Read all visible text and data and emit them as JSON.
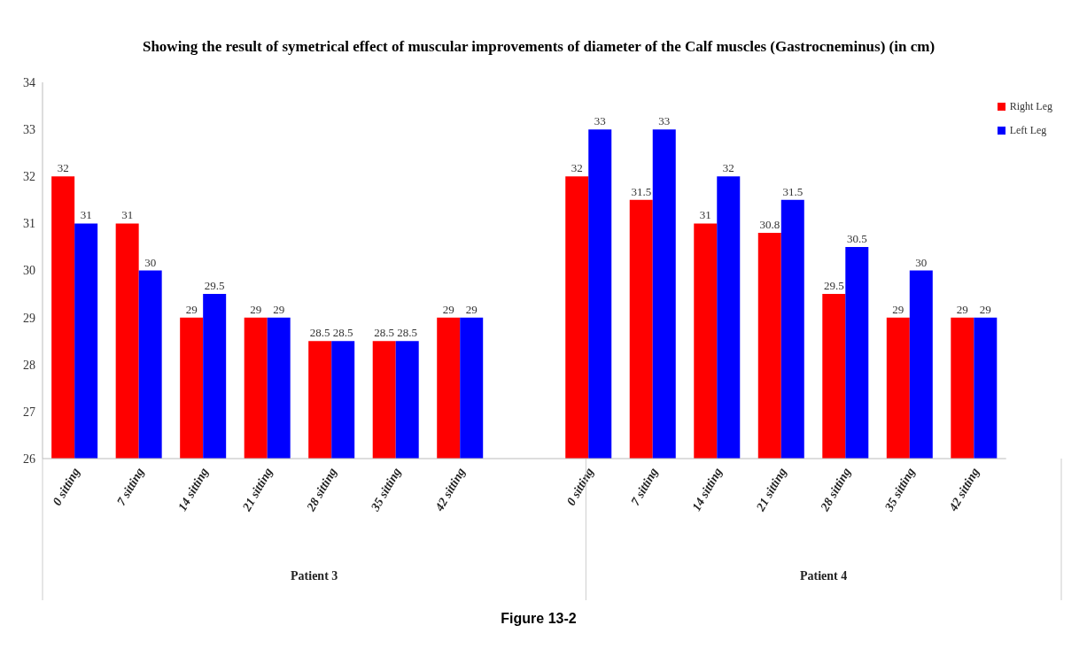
{
  "chart_data": {
    "type": "bar",
    "title": "Showing the result of  symetrical effect of muscular improvements of diameter of the Calf muscles (Gastrocneminus) (in cm)",
    "categories": [
      "0 sitting",
      "7 sitting",
      "14 sitting",
      "21 sitting",
      "28 sitting",
      "35 sitting",
      "42 sitting",
      null,
      "0 sitting",
      "7 sitting",
      "14 sitting",
      "21 sitting",
      "28 sitting",
      "35 sitting",
      "42 sitting"
    ],
    "series": [
      {
        "name": "Right Leg",
        "color": "#ff0000",
        "values": [
          32,
          31,
          29,
          29,
          28.5,
          28.5,
          29,
          null,
          32,
          31.5,
          31,
          30.8,
          29.5,
          29,
          29
        ]
      },
      {
        "name": "Left Leg",
        "color": "#0000ff",
        "values": [
          31,
          30,
          29.5,
          29,
          28.5,
          28.5,
          29,
          null,
          33,
          33,
          32,
          31.5,
          30.5,
          30,
          29
        ]
      }
    ],
    "ylim": [
      26,
      34
    ],
    "yticks": [
      26,
      27,
      28,
      29,
      30,
      31,
      32,
      33,
      34
    ],
    "legend": "top right",
    "data_labels": true,
    "annotations": [
      "Patient 3",
      "Patient 4",
      "Figure 13-2"
    ]
  }
}
